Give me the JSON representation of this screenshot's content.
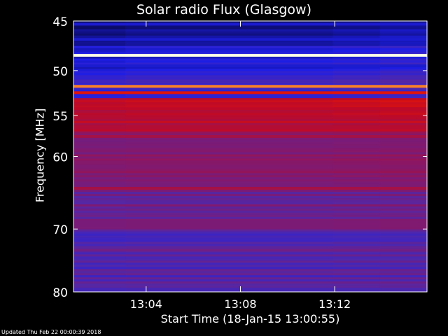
{
  "chart_data": {
    "type": "heatmap",
    "title": "Solar radio Flux (Glasgow)",
    "xlabel": "Start Time (18-Jan-15 13:00:55)",
    "ylabel": "Frequency [MHz]",
    "x_ticks": [
      "13:04",
      "13:08",
      "13:12"
    ],
    "x_tick_minutes": [
      3.083,
      7.083,
      11.083
    ],
    "x_range_minutes": [
      0,
      15
    ],
    "y_ticks": [
      45,
      50,
      55,
      60,
      70,
      80
    ],
    "y_range_mhz": [
      45,
      80
    ],
    "y_scale": "log",
    "emission_bands": [
      {
        "mhz": 45.3,
        "intensity": 0.15
      },
      {
        "mhz": 46.8,
        "intensity": 0.15
      },
      {
        "mhz": 48.4,
        "intensity": 1.0
      },
      {
        "mhz": 49.5,
        "intensity": 0.15
      },
      {
        "mhz": 51.7,
        "intensity": 0.85
      },
      {
        "mhz": 52.4,
        "intensity": 0.75
      },
      {
        "mhz": 54.2,
        "intensity": 0.62
      },
      {
        "mhz": 57.5,
        "intensity": 0.55
      },
      {
        "mhz": 64.2,
        "intensity": 0.55
      },
      {
        "mhz": 73.2,
        "intensity": 0.4
      }
    ]
  },
  "footer": "Updated Thu Feb 22 00:00:39 2018"
}
